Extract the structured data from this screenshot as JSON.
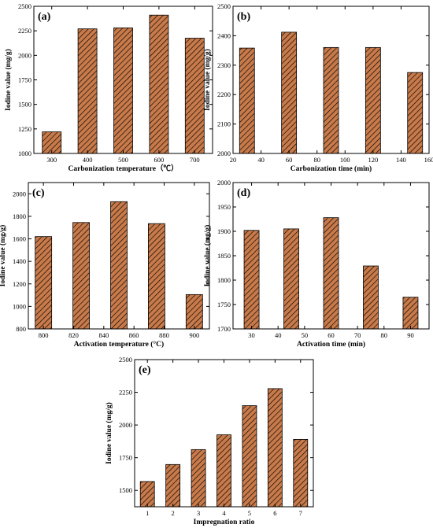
{
  "bar_color": "#c87a4a",
  "chart_data": [
    {
      "type": "bar",
      "panel_label": "(a)",
      "xlabel": "Carbonization temperature（℃）",
      "ylabel": "Iodine value (mg/g)",
      "categories": [
        "300",
        "400",
        "500",
        "600",
        "700"
      ],
      "values": [
        1220,
        2270,
        2280,
        2410,
        2175
      ],
      "ylim": [
        1000,
        2500
      ],
      "yticks": [
        "1000",
        "1250",
        "1500",
        "1750",
        "2000",
        "2250",
        "2500"
      ],
      "grid": false
    },
    {
      "type": "bar",
      "panel_label": "(b)",
      "xlabel": "Carbonization time (min)",
      "ylabel": "Iodine value (mg/g)",
      "x": [
        30,
        60,
        90,
        120,
        150
      ],
      "values": [
        2358,
        2412,
        2360,
        2360,
        2275
      ],
      "xlim": [
        20,
        160
      ],
      "xticks": [
        "20",
        "40",
        "60",
        "80",
        "100",
        "120",
        "140",
        "160"
      ],
      "ylim": [
        2000,
        2500
      ],
      "yticks": [
        "2000",
        "2100",
        "2200",
        "2300",
        "2400",
        "2500"
      ],
      "grid": false
    },
    {
      "type": "bar",
      "panel_label": "(c)",
      "xlabel": "Activation temperature (°C)",
      "ylabel": "Iodine value (mg/g)",
      "x": [
        800,
        825,
        850,
        875,
        900
      ],
      "values": [
        1620,
        1745,
        1930,
        1735,
        1105
      ],
      "xlim": [
        790,
        910
      ],
      "xticks": [
        "800",
        "820",
        "840",
        "860",
        "880",
        "900"
      ],
      "ylim": [
        800,
        2100
      ],
      "yticks": [
        "800",
        "1000",
        "1200",
        "1400",
        "1600",
        "1800",
        "2000"
      ],
      "grid": false
    },
    {
      "type": "bar",
      "panel_label": "(d)",
      "xlabel": "Activation time (min)",
      "ylabel": "Iodine value (mg/g)",
      "x": [
        30,
        45,
        60,
        75,
        90
      ],
      "values": [
        1902,
        1905,
        1928,
        1829,
        1765
      ],
      "xlim": [
        23,
        97
      ],
      "xticks": [
        "30",
        "40",
        "50",
        "60",
        "70",
        "80",
        "90"
      ],
      "ylim": [
        1700,
        2000
      ],
      "yticks": [
        "1700",
        "1750",
        "1800",
        "1850",
        "1900",
        "1950",
        "2000"
      ],
      "grid": false
    },
    {
      "type": "bar",
      "panel_label": "(e)",
      "xlabel": "Impregnation ratio",
      "ylabel": "Iodine value (mg/g)",
      "categories": [
        "1",
        "2",
        "3",
        "4",
        "5",
        "6",
        "7"
      ],
      "values": [
        1568,
        1698,
        1812,
        1925,
        2148,
        2278,
        1890
      ],
      "ylim": [
        1375,
        2500
      ],
      "yticks": [
        "1500",
        "1750",
        "2000",
        "2250",
        "2500"
      ],
      "grid": false
    }
  ]
}
